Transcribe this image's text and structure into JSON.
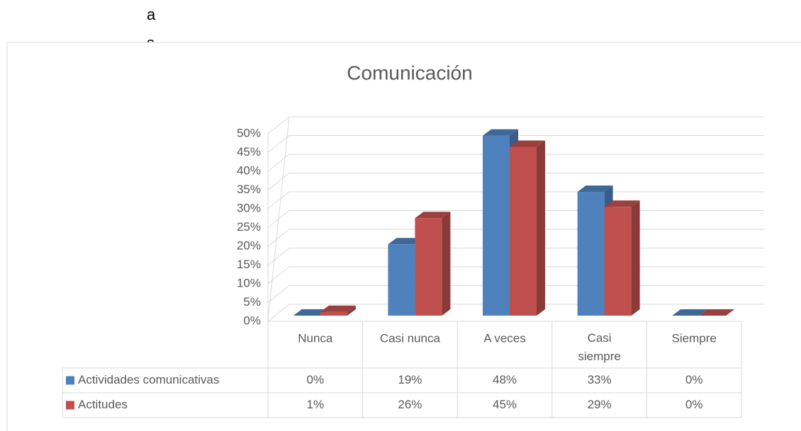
{
  "header_fragments": [
    "a",
    "s"
  ],
  "chart_data": {
    "type": "bar3d",
    "title": "Comunicación",
    "categories": [
      "Nunca",
      "Casi nunca",
      "A veces",
      "Casi siempre",
      "Siempre"
    ],
    "series": [
      {
        "name": "Actividades comunicativas",
        "color": "#4f81bd",
        "values": [
          0,
          19,
          48,
          33,
          0
        ],
        "value_labels": [
          "0%",
          "19%",
          "48%",
          "33%",
          "0%"
        ]
      },
      {
        "name": "Actitudes",
        "color": "#c0504d",
        "values": [
          1,
          26,
          45,
          29,
          0
        ],
        "value_labels": [
          "1%",
          "26%",
          "45%",
          "29%",
          "0%"
        ]
      }
    ],
    "ylim": [
      0,
      50
    ],
    "yticks": [
      {
        "value": 0,
        "label": "0%"
      },
      {
        "value": 5,
        "label": "5%"
      },
      {
        "value": 10,
        "label": "10%"
      },
      {
        "value": 15,
        "label": "15%"
      },
      {
        "value": 20,
        "label": "20%"
      },
      {
        "value": 25,
        "label": "25%"
      },
      {
        "value": 30,
        "label": "30%"
      },
      {
        "value": 35,
        "label": "35%"
      },
      {
        "value": 40,
        "label": "40%"
      },
      {
        "value": 45,
        "label": "45%"
      },
      {
        "value": 50,
        "label": "50%"
      }
    ],
    "grid": true,
    "data_table": true
  }
}
